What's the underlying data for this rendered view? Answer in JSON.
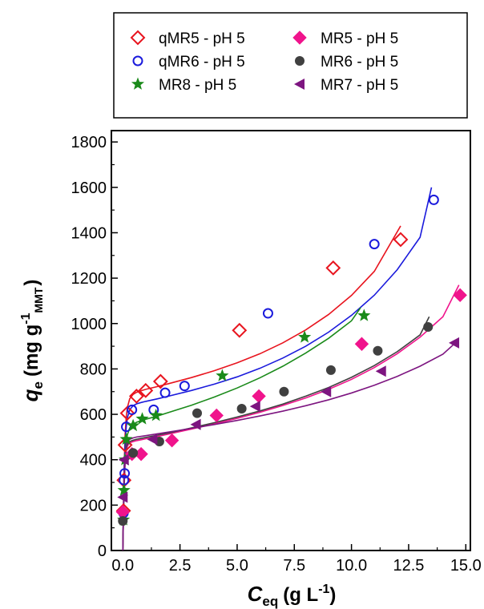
{
  "chart_data": {
    "type": "scatter",
    "xlabel_main": "C",
    "xlabel_sub": "eq",
    "xlabel_unit": "(g L",
    "xlabel_sup": "-1",
    "xlabel_close": ")",
    "ylabel_main": "q",
    "ylabel_sub": "e",
    "ylabel_unit": "(mg g",
    "ylabel_sup": "-1",
    "ylabel_sub2": "MMT",
    "ylabel_close": ")",
    "xlim": [
      -0.5,
      15.2
    ],
    "ylim": [
      0,
      1850
    ],
    "xticks": [
      0.0,
      2.5,
      5.0,
      7.5,
      10.0,
      12.5,
      15.0
    ],
    "xtick_labels": [
      "0.0",
      "2.5",
      "5.0",
      "7.5",
      "10.0",
      "12.5",
      "15.0"
    ],
    "yticks": [
      0,
      200,
      400,
      600,
      800,
      1000,
      1200,
      1400,
      1600,
      1800
    ],
    "ytick_labels": [
      "0",
      "200",
      "400",
      "600",
      "800",
      "1000",
      "1200",
      "1400",
      "1600",
      "1800"
    ],
    "grid": false,
    "legend_position": "top (outside, framed)",
    "series": [
      {
        "name": "qMR5 - pH 5",
        "marker": "diamond-open",
        "color": "#e8141e",
        "x": [
          0.03,
          0.05,
          0.1,
          0.2,
          0.6,
          1.0,
          1.65,
          5.1,
          9.2,
          12.15
        ],
        "y": [
          175,
          310,
          465,
          605,
          680,
          705,
          745,
          970,
          1245,
          1370
        ],
        "fit_x": [
          0.0,
          0.02,
          0.05,
          0.1,
          0.15,
          0.2,
          0.3,
          0.45,
          0.6,
          0.8,
          1.0,
          1.5,
          2.0,
          3.0,
          4.0,
          5.0,
          6.0,
          7.0,
          8.0,
          9.0,
          10.0,
          11.0,
          12.15
        ],
        "fit_y": [
          0,
          150,
          340,
          510,
          590,
          630,
          668,
          688,
          697,
          704,
          710,
          722,
          735,
          762,
          792,
          827,
          867,
          915,
          972,
          1040,
          1124,
          1230,
          1430
        ]
      },
      {
        "name": "qMR6 - pH 5",
        "marker": "circle-open",
        "color": "#1a1adc",
        "x": [
          0.03,
          0.05,
          0.08,
          0.15,
          0.4,
          1.35,
          1.85,
          2.7,
          6.35,
          11.0,
          13.6
        ],
        "y": [
          165,
          310,
          340,
          545,
          620,
          620,
          695,
          725,
          1045,
          1350,
          1545
        ],
        "fit_x": [
          0.0,
          0.02,
          0.05,
          0.1,
          0.15,
          0.2,
          0.3,
          0.45,
          0.6,
          0.8,
          1.0,
          1.5,
          2.0,
          3.0,
          4.0,
          5.0,
          6.0,
          7.0,
          8.0,
          9.0,
          10.0,
          11.0,
          12.0,
          13.0,
          13.5
        ],
        "fit_y": [
          0,
          140,
          320,
          470,
          545,
          585,
          620,
          638,
          646,
          652,
          657,
          668,
          680,
          705,
          733,
          765,
          803,
          848,
          900,
          962,
          1036,
          1125,
          1237,
          1380,
          1600
        ]
      },
      {
        "name": "MR8 - pH 5",
        "marker": "star",
        "color": "#1a8a1a",
        "x": [
          0.03,
          0.05,
          0.1,
          0.15,
          0.45,
          0.85,
          1.45,
          4.35,
          7.95,
          10.55
        ],
        "y": [
          135,
          265,
          400,
          490,
          550,
          580,
          595,
          770,
          940,
          1035
        ],
        "fit_x": [
          0.0,
          0.02,
          0.05,
          0.1,
          0.15,
          0.2,
          0.3,
          0.45,
          0.6,
          0.8,
          1.0,
          1.5,
          2.0,
          3.0,
          4.0,
          5.0,
          6.0,
          7.0,
          8.0,
          9.0,
          10.0,
          10.4
        ],
        "fit_y": [
          0,
          120,
          280,
          420,
          480,
          510,
          540,
          556,
          565,
          572,
          578,
          592,
          608,
          640,
          676,
          716,
          761,
          812,
          870,
          935,
          1012,
          1070
        ]
      },
      {
        "name": "MR5 - pH 5",
        "marker": "diamond-filled",
        "color": "#f0148c",
        "x": [
          0.0,
          0.4,
          0.8,
          2.15,
          4.1,
          5.95,
          10.45,
          14.75
        ],
        "y": [
          170,
          425,
          425,
          485,
          595,
          680,
          910,
          1125
        ],
        "fit_x": [
          0.0,
          0.02,
          0.05,
          0.1,
          0.15,
          0.2,
          0.3,
          0.45,
          0.6,
          0.8,
          1.0,
          1.5,
          2.0,
          3.0,
          4.0,
          5.0,
          6.0,
          7.0,
          8.0,
          9.0,
          10.0,
          11.0,
          12.0,
          13.0,
          14.0,
          14.7
        ],
        "fit_y": [
          0,
          110,
          260,
          390,
          440,
          460,
          474,
          480,
          484,
          488,
          492,
          502,
          513,
          535,
          558,
          582,
          609,
          639,
          672,
          710,
          754,
          806,
          867,
          940,
          1030,
          1170
        ]
      },
      {
        "name": "MR6 - pH 5",
        "marker": "circle-filled",
        "color": "#404040",
        "x": [
          0.0,
          0.45,
          1.6,
          3.25,
          5.2,
          7.05,
          9.1,
          11.15,
          13.35
        ],
        "y": [
          130,
          430,
          480,
          605,
          625,
          700,
          795,
          880,
          985
        ],
        "fit_x": [
          0.0,
          0.02,
          0.05,
          0.1,
          0.15,
          0.2,
          0.3,
          0.45,
          0.6,
          0.8,
          1.0,
          1.5,
          2.0,
          3.0,
          4.0,
          5.0,
          6.0,
          7.0,
          8.0,
          9.0,
          10.0,
          11.0,
          12.0,
          13.0,
          13.4
        ],
        "fit_y": [
          0,
          110,
          260,
          395,
          450,
          468,
          480,
          486,
          490,
          494,
          498,
          508,
          518,
          540,
          563,
          588,
          615,
          645,
          680,
          718,
          763,
          815,
          876,
          950,
          1030
        ]
      },
      {
        "name": "MR7 - pH 5",
        "marker": "triangle-left-filled",
        "color": "#7d1580",
        "x": [
          0.0,
          0.05,
          1.3,
          3.2,
          5.8,
          8.9,
          11.3,
          14.5
        ],
        "y": [
          235,
          400,
          490,
          555,
          635,
          700,
          790,
          915
        ],
        "fit_x": [
          0.0,
          0.02,
          0.05,
          0.1,
          0.15,
          0.2,
          0.3,
          0.45,
          0.6,
          0.8,
          1.0,
          1.5,
          2.0,
          3.0,
          4.0,
          5.0,
          6.0,
          7.0,
          8.0,
          9.0,
          10.0,
          11.0,
          12.0,
          13.0,
          14.0,
          14.6
        ],
        "fit_y": [
          0,
          120,
          270,
          410,
          460,
          478,
          490,
          496,
          500,
          503,
          506,
          514,
          522,
          538,
          555,
          573,
          593,
          614,
          638,
          664,
          694,
          728,
          767,
          812,
          865,
          920
        ]
      }
    ]
  }
}
